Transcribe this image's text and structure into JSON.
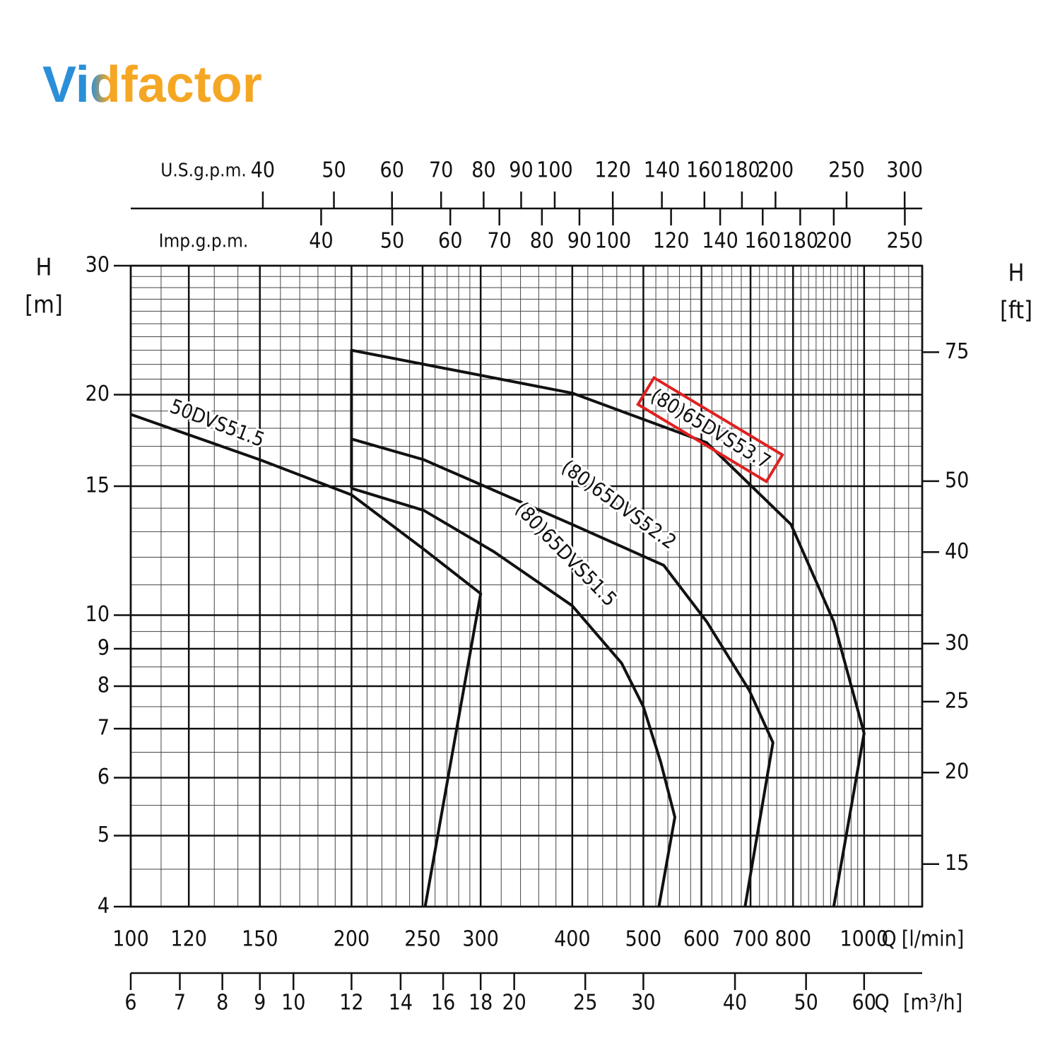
{
  "logo": "Vidfactor",
  "chart_data": {
    "type": "line",
    "log_x": true,
    "log_y": true,
    "grid": true,
    "xlabel": "Q",
    "xunit": "[l/min]",
    "xlim": [
      100,
      1200
    ],
    "xticks": [
      100,
      120,
      150,
      200,
      250,
      300,
      400,
      500,
      600,
      700,
      800,
      1000
    ],
    "xminor": [
      110,
      130,
      140,
      160,
      170,
      180,
      190,
      210,
      220,
      230,
      240,
      260,
      270,
      280,
      290,
      320,
      340,
      360,
      380,
      420,
      440,
      460,
      480,
      520,
      540,
      560,
      580,
      620,
      640,
      660,
      680,
      720,
      740,
      760,
      780,
      820,
      840,
      860,
      880,
      900,
      920,
      940,
      960,
      980,
      1050,
      1100,
      1150
    ],
    "ylabel": "H",
    "yunit": "[m]",
    "ylim": [
      4,
      30
    ],
    "yticks": [
      4,
      5,
      6,
      7,
      8,
      9,
      10,
      15,
      20,
      30
    ],
    "yminor": [
      4.5,
      5.5,
      6.5,
      7.5,
      8.5,
      9.5,
      11,
      12,
      13,
      14,
      16,
      17,
      18,
      19,
      21,
      22,
      23,
      24,
      25,
      26,
      27,
      28,
      29
    ],
    "y2label": "H",
    "y2unit": "[ft]",
    "y2lim": [
      13.12,
      98.43
    ],
    "y2ticks": [
      15,
      20,
      25,
      30,
      40,
      50,
      75
    ],
    "top_axes": [
      {
        "label": "U.S.g.p.m.",
        "lim": [
          26.42,
          317.0
        ],
        "ticks": [
          40,
          50,
          60,
          70,
          80,
          90,
          100,
          120,
          140,
          160,
          180,
          200,
          250,
          300
        ]
      },
      {
        "label": "Imp.g.p.m.",
        "lim": [
          22.0,
          264.0
        ],
        "ticks": [
          40,
          50,
          60,
          70,
          80,
          90,
          100,
          120,
          140,
          160,
          180,
          200,
          250
        ]
      }
    ],
    "bottom_axis": {
      "label": "Q",
      "unit": "[m³/h]",
      "lim": [
        6,
        72
      ],
      "ticks": [
        6,
        7,
        8,
        9,
        10,
        12,
        14,
        16,
        18,
        20,
        25,
        30,
        40,
        50,
        60
      ]
    },
    "series": [
      {
        "name": "50DVS51.5",
        "color": "#111111",
        "x": [
          100,
          150,
          200,
          251,
          300,
          252
        ],
        "values": [
          18.8,
          16.3,
          14.6,
          12.3,
          10.7,
          4
        ]
      },
      {
        "name": "(80)65DVS51.5",
        "color": "#111111",
        "x": [
          200,
          251,
          313,
          400,
          467,
          500,
          528,
          552,
          525
        ],
        "values": [
          14.9,
          13.9,
          12.2,
          10.3,
          8.6,
          7.5,
          6.3,
          5.3,
          4
        ]
      },
      {
        "name": "(80)65DVS52.2",
        "color": "#111111",
        "x": [
          200,
          251,
          400,
          533,
          610,
          697,
          751,
          688
        ],
        "values": [
          17.4,
          16.3,
          13.3,
          11.7,
          9.8,
          7.9,
          6.7,
          4
        ]
      },
      {
        "name": "(80)65DVS53.7",
        "color": "#111111",
        "x": [
          200,
          200,
          400,
          610,
          795,
          909,
          1000,
          909
        ],
        "values": [
          14.9,
          23.0,
          20.1,
          17.2,
          13.3,
          9.8,
          6.9,
          4
        ]
      }
    ],
    "highlight_color": "#e02020"
  }
}
